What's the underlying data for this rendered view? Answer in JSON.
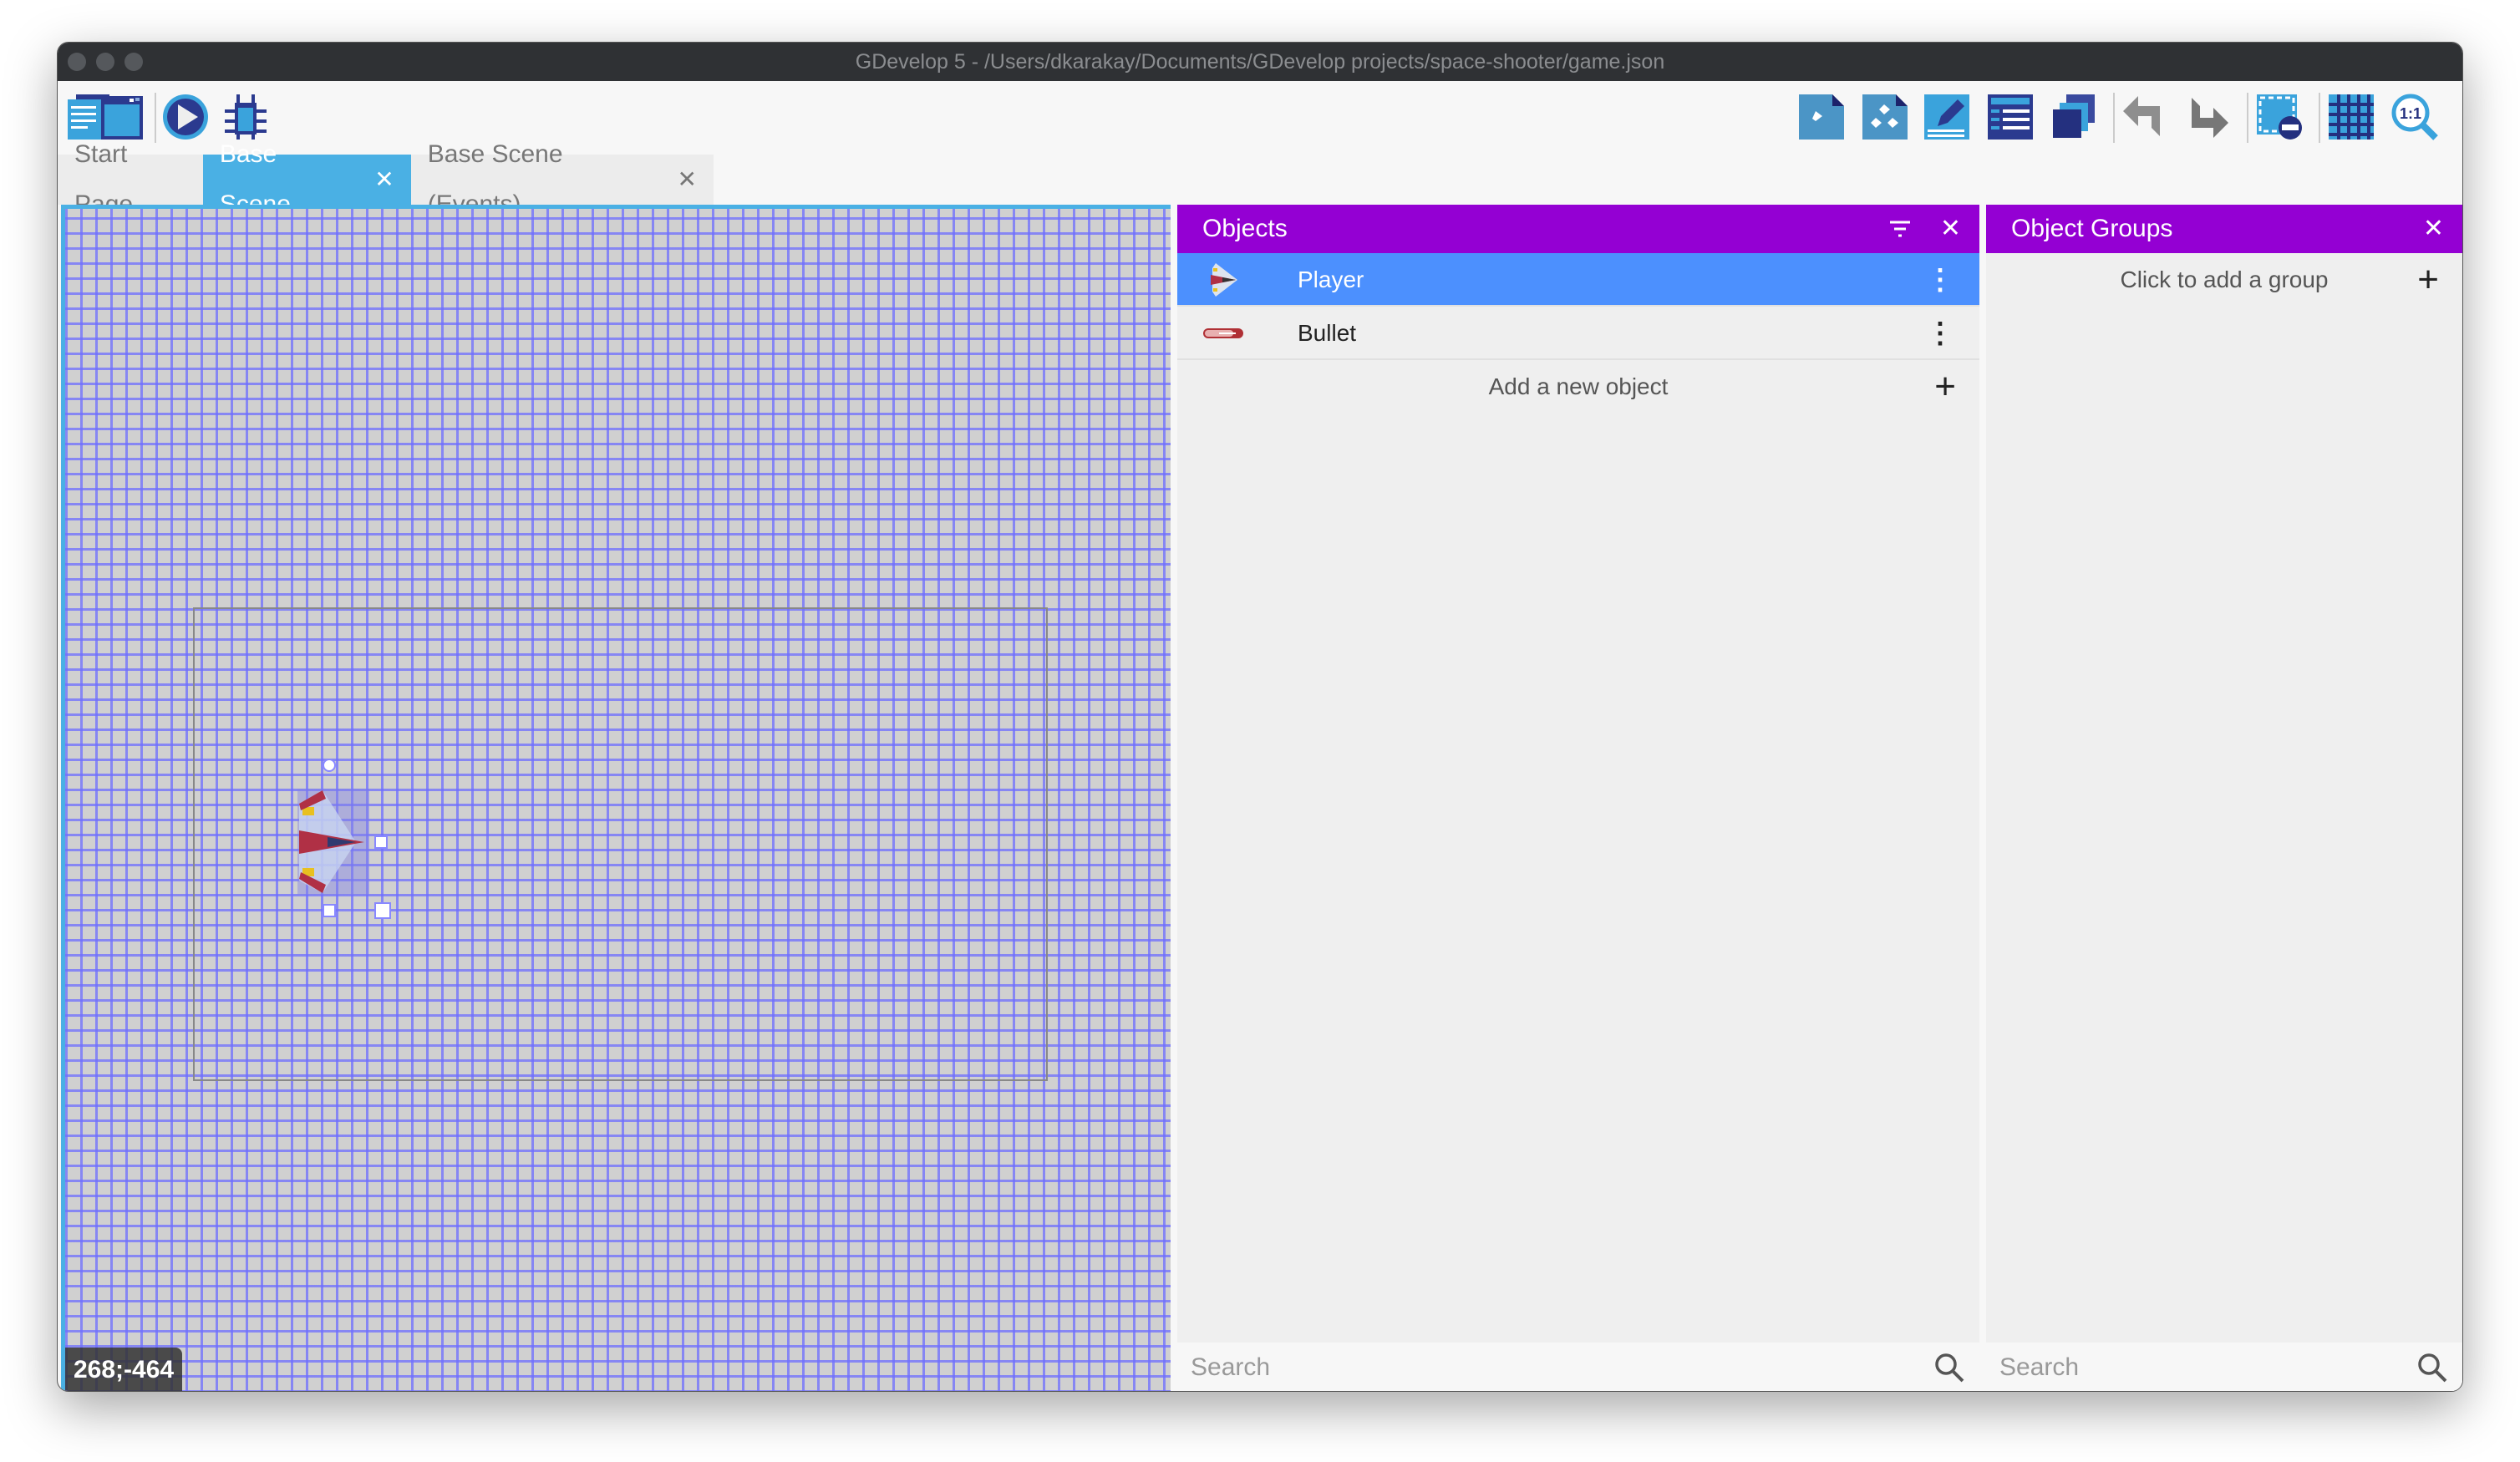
{
  "window": {
    "title": "GDevelop 5 - /Users/dkarakay/Documents/GDevelop projects/space-shooter/game.json"
  },
  "toolbar": {
    "left": [
      "project-manager-icon",
      "scene-window-icon",
      "preview-play-icon",
      "debugger-icon"
    ],
    "right": [
      "object-icon",
      "object-groups-icon",
      "properties-icon",
      "instances-list-icon",
      "layers-icon",
      "undo-icon",
      "redo-icon",
      "deselect-icon",
      "grid-icon",
      "zoom-reset-icon"
    ]
  },
  "tabs": [
    {
      "label": "Start Page",
      "active": false
    },
    {
      "label": "Base Scene",
      "active": true
    },
    {
      "label": "Base Scene (Events)",
      "active": false
    }
  ],
  "canvas": {
    "cursor_coords": "268;-464"
  },
  "objects_panel": {
    "title": "Objects",
    "items": [
      {
        "name": "Player",
        "selected": true
      },
      {
        "name": "Bullet",
        "selected": false
      }
    ],
    "add_label": "Add a new object",
    "search_placeholder": "Search"
  },
  "groups_panel": {
    "title": "Object Groups",
    "add_label": "Click to add a group",
    "search_placeholder": "Search"
  },
  "colors": {
    "panel_header": "#9400d3",
    "selection": "#4c90fe",
    "active_tab": "#4ab0e4"
  },
  "glyphs": {
    "close": "✕",
    "plus": "+",
    "more": "⋮"
  }
}
